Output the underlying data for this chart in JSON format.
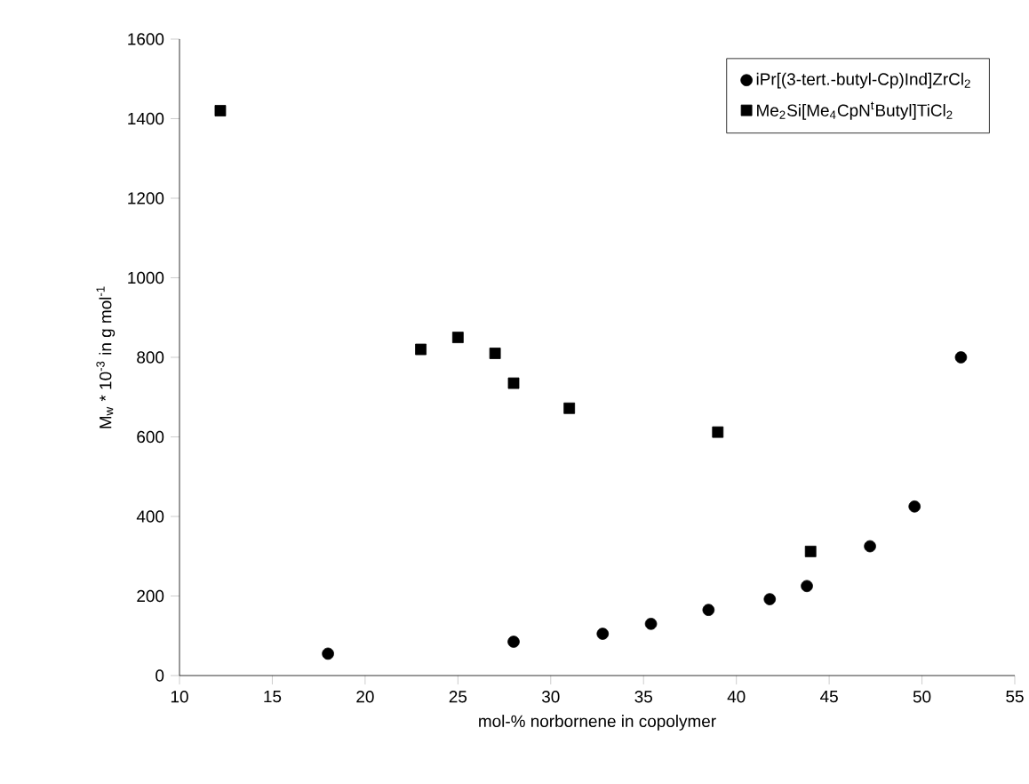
{
  "chart_data": {
    "type": "scatter",
    "xlabel": "mol-% norbornene in copolymer",
    "ylabel": "M$_{w}$ * 10$^{-3}$ in g mol$^{-1}$",
    "xlim": [
      10,
      55
    ],
    "xticks": [
      10,
      15,
      20,
      25,
      30,
      35,
      40,
      45,
      50,
      55
    ],
    "ylim": [
      0,
      1600
    ],
    "yticks": [
      0,
      200,
      400,
      600,
      800,
      1000,
      1200,
      1400,
      1600
    ],
    "grid": false,
    "legend": "top right",
    "series": [
      {
        "name": "iPr[(3-tert.-butyl-Cp)Ind]ZrCl$_{2}$",
        "color": "#000000",
        "marker": "circle",
        "x": [
          18,
          28,
          32.8,
          35.4,
          38.5,
          41.8,
          43.8,
          47.2,
          49.6,
          52.1
        ],
        "values": [
          55,
          85,
          105,
          130,
          165,
          192,
          225,
          325,
          425,
          800
        ]
      },
      {
        "name": "Me$_{2}$Si[Me$_{4}$CpN$^{t}$Butyl]TiCl$_{2}$",
        "color": "#000000",
        "marker": "square",
        "x": [
          12.2,
          23,
          25,
          27,
          28,
          31,
          39,
          44
        ],
        "values": [
          1420,
          820,
          850,
          810,
          735,
          672,
          612,
          312
        ]
      }
    ]
  }
}
